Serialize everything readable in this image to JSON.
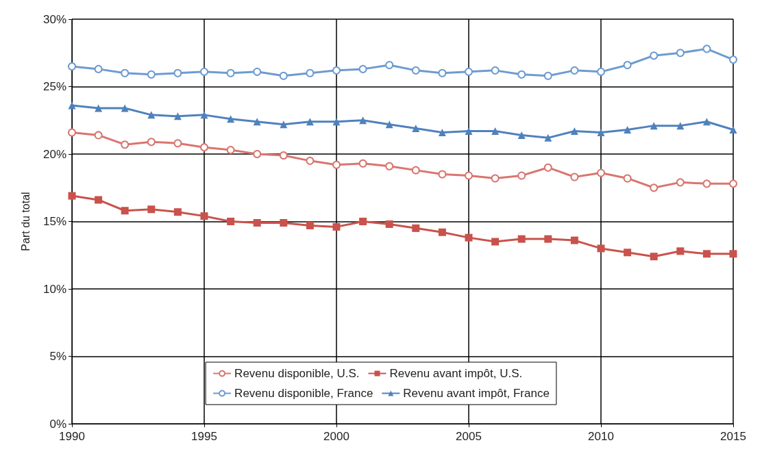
{
  "chart_data": {
    "type": "line",
    "ylabel": "Part du total",
    "x": [
      1990,
      1991,
      1992,
      1993,
      1994,
      1995,
      1996,
      1997,
      1998,
      1999,
      2000,
      2001,
      2002,
      2003,
      2004,
      2005,
      2006,
      2007,
      2008,
      2009,
      2010,
      2011,
      2012,
      2013,
      2014,
      2015
    ],
    "xlim": [
      1990,
      2015
    ],
    "xticks": [
      1990,
      1995,
      2000,
      2005,
      2010,
      2015
    ],
    "ylim": [
      0,
      30
    ],
    "yticks": [
      {
        "value": 0,
        "label": "0%"
      },
      {
        "value": 5,
        "label": "5%"
      },
      {
        "value": 10,
        "label": "10%"
      },
      {
        "value": 15,
        "label": "15%"
      },
      {
        "value": 20,
        "label": "20%"
      },
      {
        "value": 25,
        "label": "25%"
      },
      {
        "value": 30,
        "label": "30%"
      }
    ],
    "grid": true,
    "legend": "bottom",
    "series": [
      {
        "name": "Revenu disponible, U.S.",
        "color": "#d9756f",
        "marker": "circle",
        "values": [
          21.6,
          21.4,
          20.7,
          20.9,
          20.8,
          20.5,
          20.3,
          20.0,
          19.9,
          19.5,
          19.2,
          19.3,
          19.1,
          18.8,
          18.5,
          18.4,
          18.2,
          18.4,
          19.0,
          18.3,
          18.6,
          18.2,
          17.5,
          17.9,
          17.8,
          17.8
        ]
      },
      {
        "name": "Revenu avant impôt, U.S.",
        "color": "#c9524c",
        "marker": "square",
        "values": [
          16.9,
          16.6,
          15.8,
          15.9,
          15.7,
          15.4,
          15.0,
          14.9,
          14.9,
          14.7,
          14.6,
          15.0,
          14.8,
          14.5,
          14.2,
          13.8,
          13.5,
          13.7,
          13.7,
          13.6,
          13.0,
          12.7,
          12.4,
          12.8,
          12.6,
          12.6
        ]
      },
      {
        "name": "Revenu disponible, France",
        "color": "#6d9bd1",
        "marker": "circle",
        "values": [
          26.5,
          26.3,
          26.0,
          25.9,
          26.0,
          26.1,
          26.0,
          26.1,
          25.8,
          26.0,
          26.2,
          26.3,
          26.6,
          26.2,
          26.0,
          26.1,
          26.2,
          25.9,
          25.8,
          26.2,
          26.1,
          26.6,
          27.3,
          27.5,
          27.8,
          27.0
        ]
      },
      {
        "name": "Revenu avant impôt, France",
        "color": "#4f81bd",
        "marker": "triangle",
        "values": [
          23.6,
          23.4,
          23.4,
          22.9,
          22.8,
          22.9,
          22.6,
          22.4,
          22.2,
          22.4,
          22.4,
          22.5,
          22.2,
          21.9,
          21.6,
          21.7,
          21.7,
          21.4,
          21.2,
          21.7,
          21.6,
          21.8,
          22.1,
          22.1,
          22.4,
          21.8
        ]
      }
    ]
  }
}
